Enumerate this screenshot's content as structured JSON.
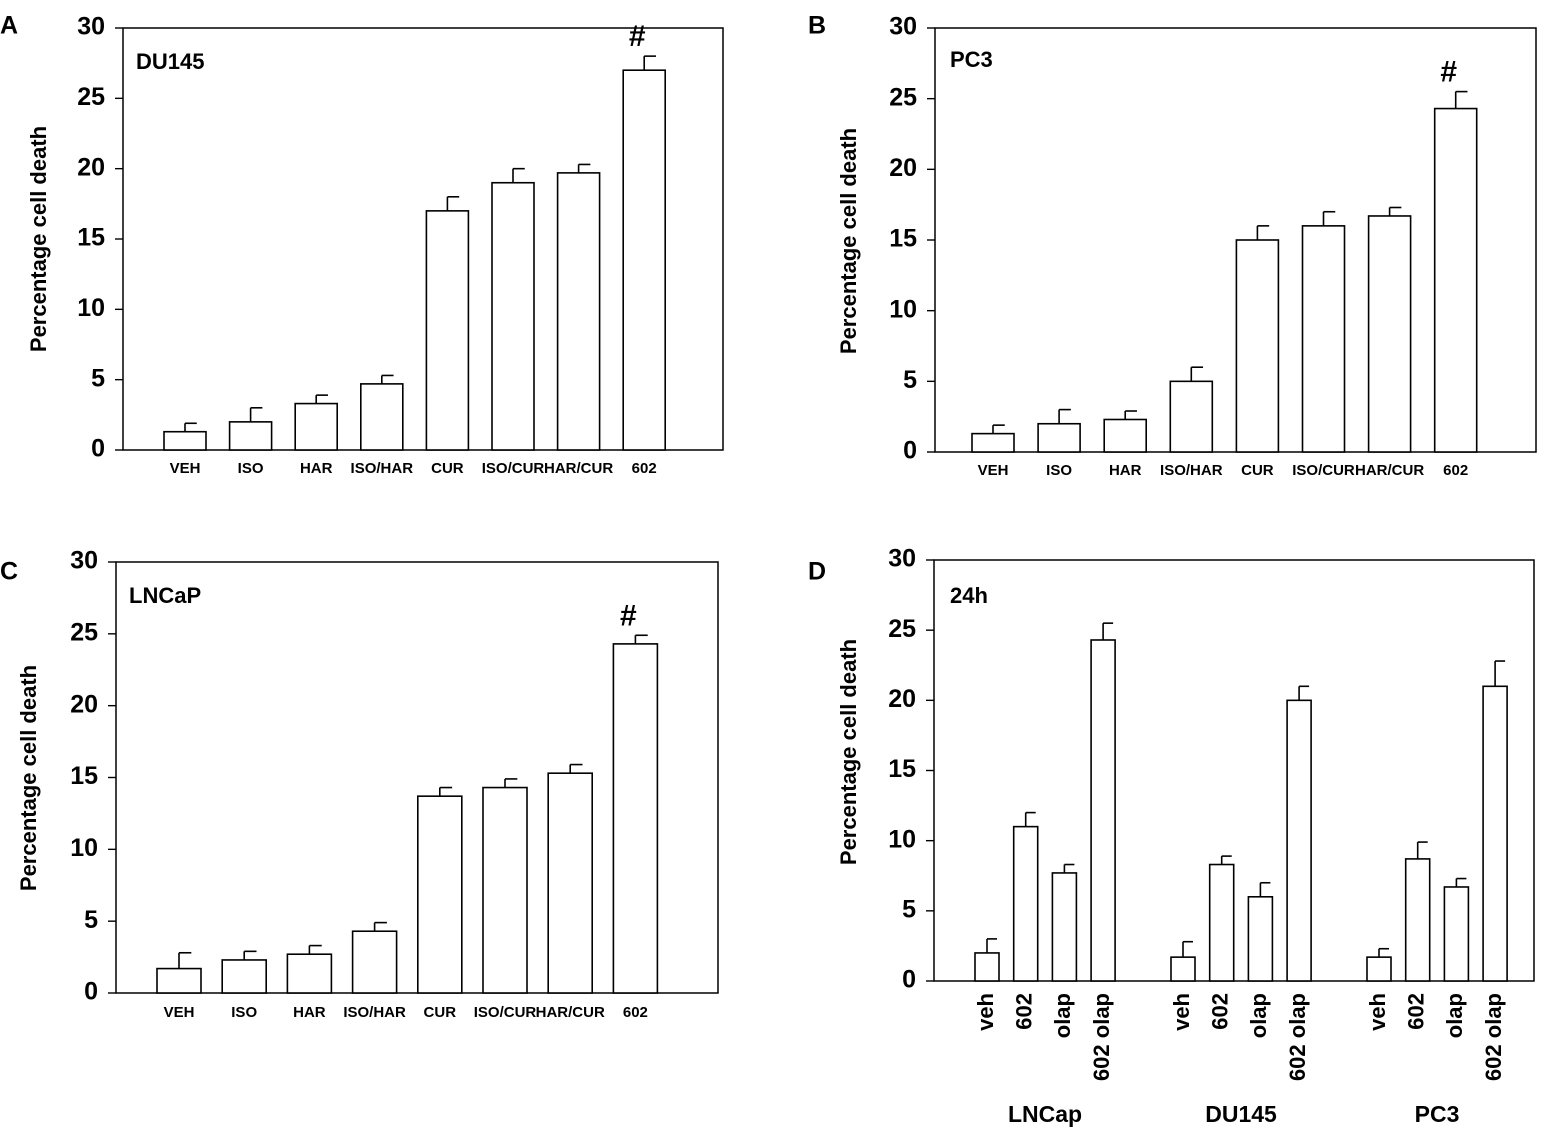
{
  "chart_data": [
    {
      "panel_label": "A",
      "type": "bar",
      "title": "DU145",
      "ylabel": "Percentage cell death",
      "xlabel": "",
      "ylim": [
        0,
        30
      ],
      "yticks": [
        "0",
        "5",
        "10",
        "15",
        "20",
        "25",
        "30"
      ],
      "categories": [
        "VEH",
        "ISO",
        "HAR",
        "ISO/HAR",
        "CUR",
        "ISO/CUR",
        "HAR/CUR",
        "602"
      ],
      "values": [
        1.3,
        2.0,
        3.3,
        4.7,
        17.0,
        19.0,
        19.7,
        27.0
      ],
      "errors": [
        0.6,
        1.0,
        0.6,
        0.6,
        1.0,
        1.0,
        0.6,
        1.0
      ],
      "annotations": [
        {
          "text": "#",
          "category": "602"
        }
      ]
    },
    {
      "panel_label": "B",
      "type": "bar",
      "title": "PC3",
      "ylabel": "Percentage cell death",
      "xlabel": "",
      "ylim": [
        0,
        30
      ],
      "yticks": [
        "0",
        "5",
        "10",
        "15",
        "20",
        "25",
        "30"
      ],
      "categories": [
        "VEH",
        "ISO",
        "HAR",
        "ISO/HAR",
        "CUR",
        "ISO/CUR",
        "HAR/CUR",
        "602"
      ],
      "values": [
        1.3,
        2.0,
        2.3,
        5.0,
        15.0,
        16.0,
        16.7,
        24.3
      ],
      "errors": [
        0.6,
        1.0,
        0.6,
        1.0,
        1.0,
        1.0,
        0.6,
        1.2
      ],
      "annotations": [
        {
          "text": "#",
          "category": "602"
        }
      ]
    },
    {
      "panel_label": "C",
      "type": "bar",
      "title": "LNCaP",
      "ylabel": "Percentage cell death",
      "xlabel": "",
      "ylim": [
        0,
        30
      ],
      "yticks": [
        "0",
        "5",
        "10",
        "15",
        "20",
        "25",
        "30"
      ],
      "categories": [
        "VEH",
        "ISO",
        "HAR",
        "ISO/HAR",
        "CUR",
        "ISO/CUR",
        "HAR/CUR",
        "602"
      ],
      "values": [
        1.7,
        2.3,
        2.7,
        4.3,
        13.7,
        14.3,
        15.3,
        24.3
      ],
      "errors": [
        1.1,
        0.6,
        0.6,
        0.6,
        0.6,
        0.6,
        0.6,
        0.6
      ],
      "annotations": [
        {
          "text": "#",
          "category": "602"
        }
      ]
    },
    {
      "panel_label": "D",
      "type": "bar",
      "title": "24h",
      "ylabel": "Percentage cell death",
      "xlabel": "",
      "ylim": [
        0,
        30
      ],
      "yticks": [
        "0",
        "5",
        "10",
        "15",
        "20",
        "25",
        "30"
      ],
      "groups": [
        {
          "name": "LNCap",
          "categories": [
            "veh",
            "602",
            "olap",
            "602 olap"
          ],
          "values": [
            2.0,
            11.0,
            7.7,
            24.3
          ],
          "errors": [
            1.0,
            1.0,
            0.6,
            1.2
          ]
        },
        {
          "name": "DU145",
          "categories": [
            "veh",
            "602",
            "olap",
            "602 olap"
          ],
          "values": [
            1.7,
            8.3,
            6.0,
            20.0
          ],
          "errors": [
            1.1,
            0.6,
            1.0,
            1.0
          ]
        },
        {
          "name": "PC3",
          "categories": [
            "veh",
            "602",
            "olap",
            "602 olap"
          ],
          "values": [
            1.7,
            8.7,
            6.7,
            21.0
          ],
          "errors": [
            0.6,
            1.2,
            0.6,
            1.8
          ]
        }
      ]
    }
  ]
}
